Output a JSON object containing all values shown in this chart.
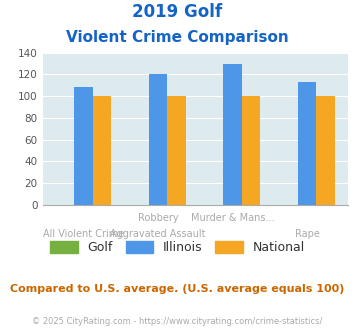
{
  "title_line1": "2019 Golf",
  "title_line2": "Violent Crime Comparison",
  "cat_top": [
    "",
    "Robbery",
    "Murder & Mans...",
    ""
  ],
  "cat_bot": [
    "All Violent Crime",
    "Aggravated Assault",
    "",
    "Rape"
  ],
  "golf_values": [
    0,
    0,
    0,
    0
  ],
  "illinois_values": [
    108,
    120,
    130,
    113
  ],
  "national_values": [
    100,
    100,
    100,
    100
  ],
  "golf_color": "#76b041",
  "illinois_color": "#4d96e8",
  "national_color": "#f5a623",
  "bg_color": "#ddeaee",
  "ylim": [
    0,
    140
  ],
  "yticks": [
    0,
    20,
    40,
    60,
    80,
    100,
    120,
    140
  ],
  "title_color": "#1464c8",
  "axis_label_color": "#aaaaaa",
  "legend_label_color": "#333333",
  "footnote_color": "#cc6600",
  "copyright_color": "#aaaaaa",
  "footnote": "Compared to U.S. average. (U.S. average equals 100)",
  "copyright": "© 2025 CityRating.com - https://www.cityrating.com/crime-statistics/"
}
